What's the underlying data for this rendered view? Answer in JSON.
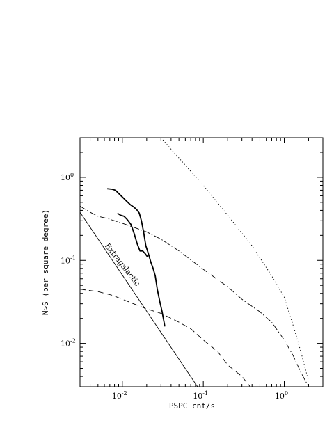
{
  "chart_data": {
    "type": "line",
    "title": "",
    "xlabel": "PSPC cnt/s",
    "ylabel": "N>S (per square degree)",
    "xscale": "log",
    "yscale": "log",
    "xlim": [
      0.003,
      3.0
    ],
    "ylim": [
      0.003,
      3.0
    ],
    "grid": false,
    "legend": "none",
    "x_tick_labels": [
      {
        "value": 0.01,
        "base": "10",
        "exp": "-2"
      },
      {
        "value": 0.1,
        "base": "10",
        "exp": "-1"
      },
      {
        "value": 1,
        "base": "10",
        "exp": "0"
      }
    ],
    "y_tick_labels": [
      {
        "value": 0.01,
        "base": "10",
        "exp": "-2"
      },
      {
        "value": 0.1,
        "base": "10",
        "exp": "-1"
      },
      {
        "value": 1,
        "base": "10",
        "exp": "0"
      }
    ],
    "annotations": [
      {
        "text": "Extragalactic",
        "x": 0.0095,
        "y": 0.085
      }
    ],
    "series": [
      {
        "style": "solid-thick",
        "x": [
          0.0065,
          0.0075,
          0.0082,
          0.009,
          0.01,
          0.0112,
          0.0125,
          0.0138,
          0.015,
          0.0162,
          0.0172,
          0.0183,
          0.0195,
          0.021,
          0.0225,
          0.024,
          0.0255,
          0.027,
          0.029,
          0.031,
          0.0335
        ],
        "y": [
          0.73,
          0.72,
          0.7,
          0.64,
          0.58,
          0.52,
          0.47,
          0.44,
          0.41,
          0.37,
          0.3,
          0.22,
          0.15,
          0.12,
          0.095,
          0.08,
          0.065,
          0.045,
          0.032,
          0.024,
          0.016
        ]
      },
      {
        "style": "solid-thick",
        "x": [
          0.0087,
          0.0095,
          0.0105,
          0.0115,
          0.0128,
          0.014,
          0.0152,
          0.0165,
          0.0178,
          0.0192,
          0.0205
        ],
        "y": [
          0.37,
          0.35,
          0.34,
          0.31,
          0.27,
          0.21,
          0.16,
          0.13,
          0.13,
          0.12,
          0.11
        ]
      },
      {
        "style": "solid-thin",
        "x": [
          0.003,
          0.085
        ],
        "y": [
          0.38,
          0.003
        ]
      },
      {
        "style": "dotted",
        "x": [
          0.03,
          0.06,
          0.1,
          0.2,
          0.4,
          0.7,
          1.0,
          1.3,
          1.6,
          2.0
        ],
        "y": [
          3.0,
          1.4,
          0.8,
          0.35,
          0.15,
          0.065,
          0.036,
          0.016,
          0.008,
          0.0035
        ]
      },
      {
        "style": "dash-dot",
        "x": [
          0.003,
          0.004,
          0.005,
          0.0065,
          0.01,
          0.02,
          0.03,
          0.05,
          0.1,
          0.2,
          0.3,
          0.5,
          0.7,
          1.0,
          1.3,
          1.6,
          2.0
        ],
        "y": [
          0.45,
          0.38,
          0.34,
          0.32,
          0.28,
          0.22,
          0.18,
          0.13,
          0.078,
          0.048,
          0.034,
          0.024,
          0.018,
          0.011,
          0.007,
          0.0045,
          0.003
        ]
      },
      {
        "style": "dashed",
        "x": [
          0.003,
          0.005,
          0.0075,
          0.01,
          0.015,
          0.02,
          0.03,
          0.05,
          0.07,
          0.1,
          0.15,
          0.2,
          0.3,
          0.38
        ],
        "y": [
          0.045,
          0.042,
          0.038,
          0.034,
          0.029,
          0.026,
          0.023,
          0.018,
          0.015,
          0.011,
          0.008,
          0.0055,
          0.004,
          0.003
        ]
      }
    ]
  }
}
